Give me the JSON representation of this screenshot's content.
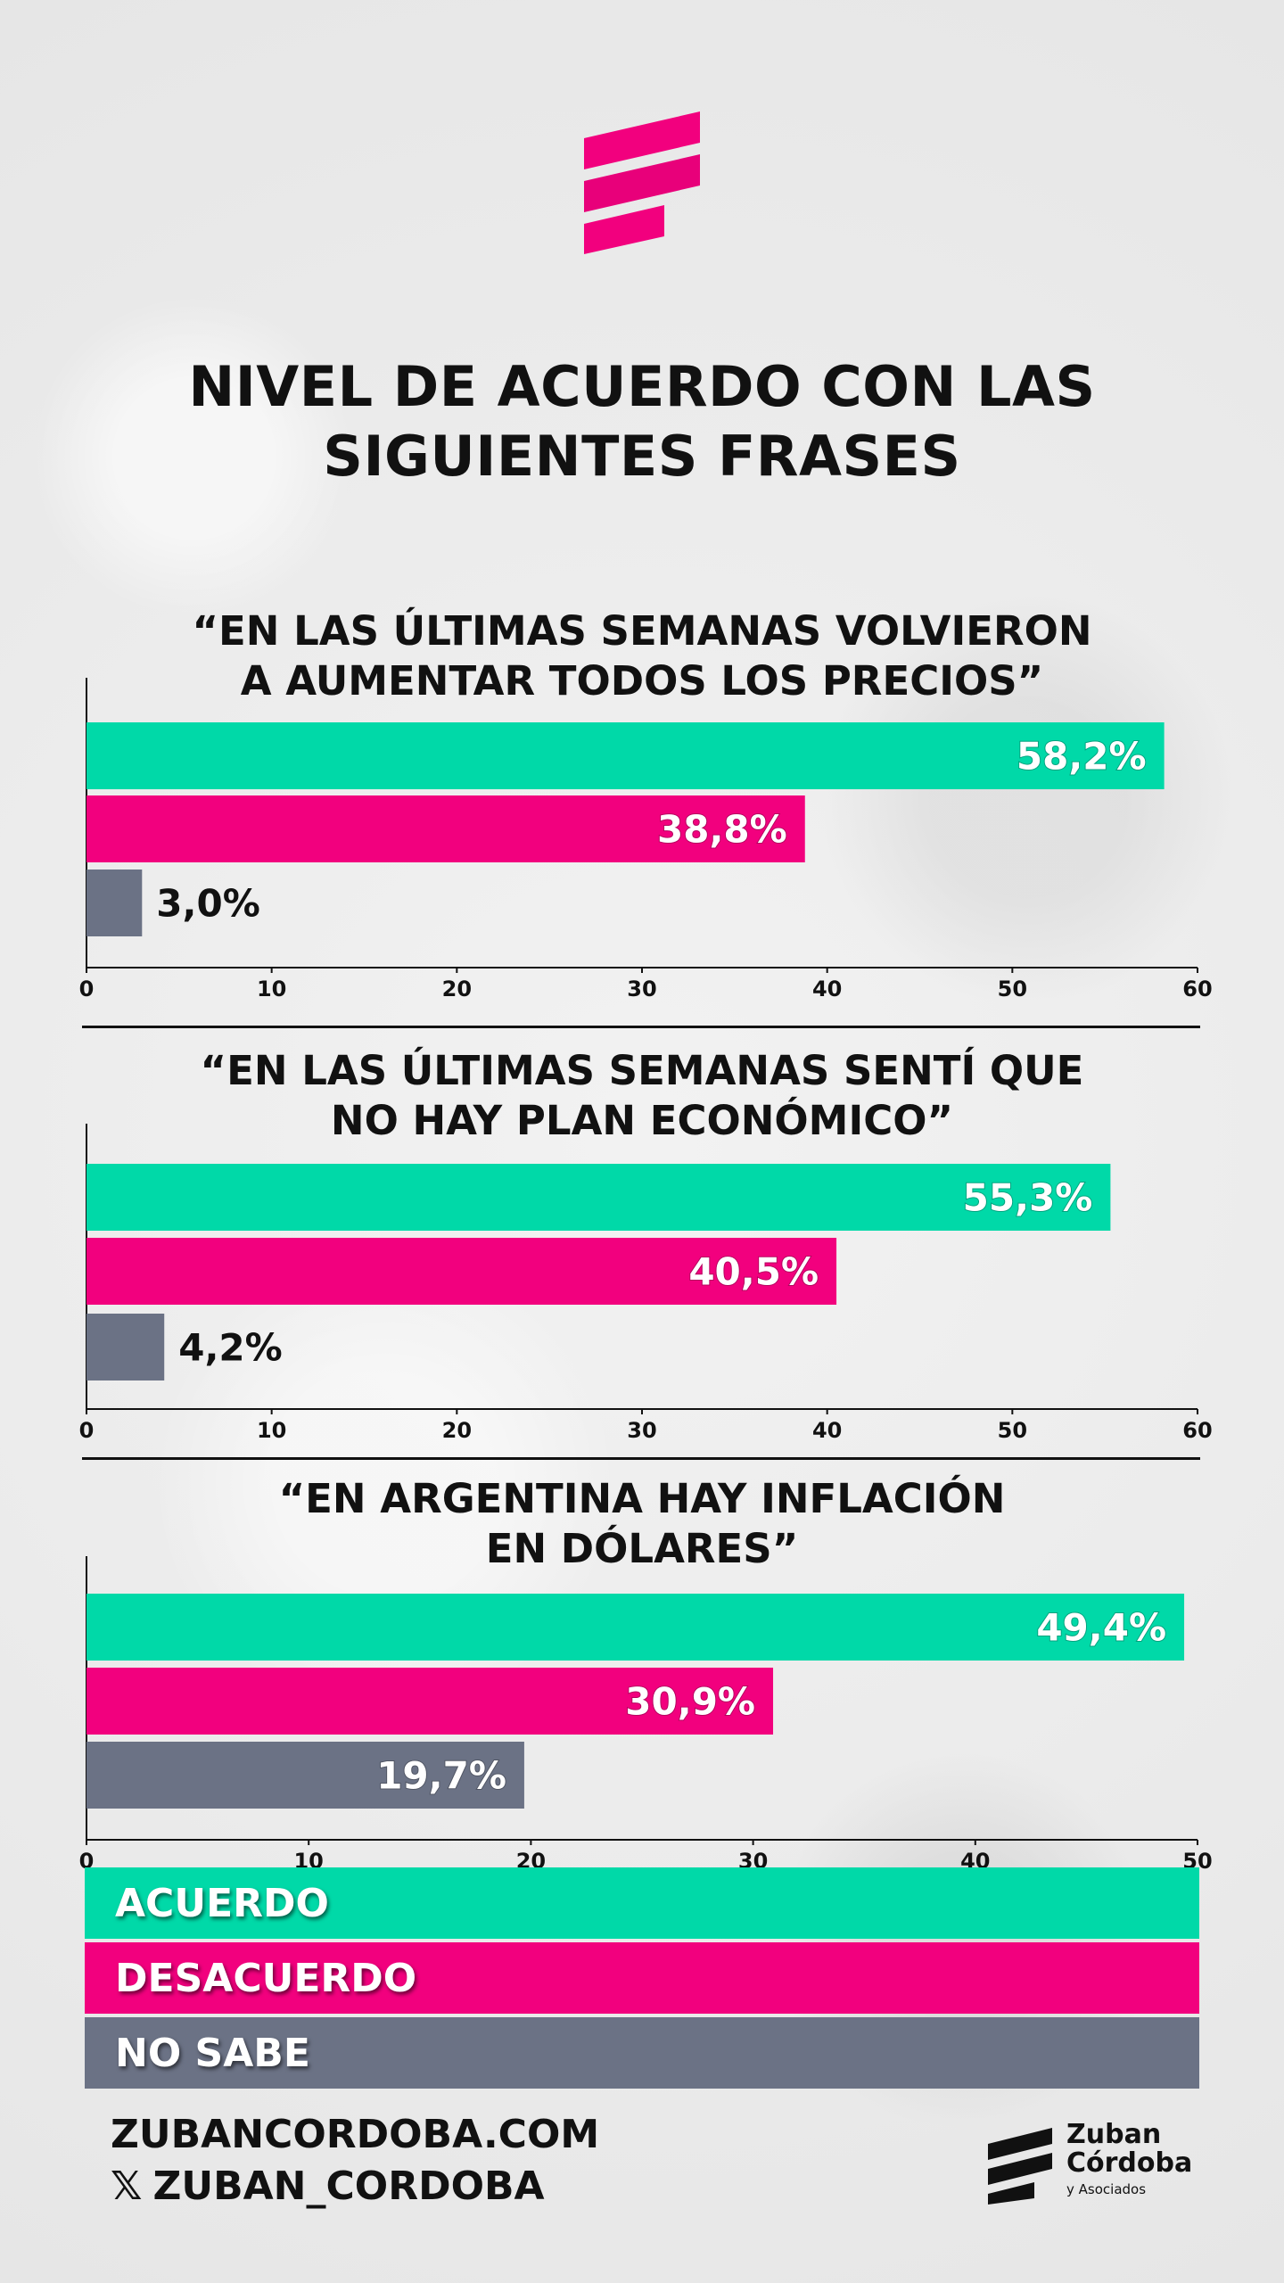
{
  "title": [
    "NIVEL DE ACUERDO CON LAS",
    "SIGUIENTES FRASES"
  ],
  "colors": {
    "acuerdo": "#00d9a8",
    "desacuerdo": "#f2007e",
    "no_sabe": "#6b7285",
    "text": "#111111"
  },
  "chart_data": [
    {
      "type": "bar",
      "orientation": "horizontal",
      "title": [
        "“EN LAS ÚLTIMAS SEMANAS VOLVIERON",
        "A AUMENTAR TODOS LOS PRECIOS”"
      ],
      "categories": [
        "ACUERDO",
        "DESACUERDO",
        "NO SABE"
      ],
      "values": [
        58.2,
        38.8,
        3.0
      ],
      "labels": [
        "58,2%",
        "38,8%",
        "3,0%"
      ],
      "xlim": [
        0,
        60
      ],
      "ticks": [
        "0",
        "10",
        "20",
        "30",
        "40",
        "50",
        "60"
      ]
    },
    {
      "type": "bar",
      "orientation": "horizontal",
      "title": [
        "“EN LAS ÚLTIMAS SEMANAS SENTÍ QUE",
        "NO HAY PLAN ECONÓMICO”"
      ],
      "categories": [
        "ACUERDO",
        "DESACUERDO",
        "NO SABE"
      ],
      "values": [
        55.3,
        40.5,
        4.2
      ],
      "labels": [
        "55,3%",
        "40,5%",
        "4,2%"
      ],
      "xlim": [
        0,
        60
      ],
      "ticks": [
        "0",
        "10",
        "20",
        "30",
        "40",
        "50",
        "60"
      ]
    },
    {
      "type": "bar",
      "orientation": "horizontal",
      "title": [
        "“EN ARGENTINA HAY INFLACIÓN",
        "EN DÓLARES”"
      ],
      "categories": [
        "ACUERDO",
        "DESACUERDO",
        "NO SABE"
      ],
      "values": [
        49.4,
        30.9,
        19.7
      ],
      "labels": [
        "49,4%",
        "30,9%",
        "19,7%"
      ],
      "xlim": [
        0,
        50
      ],
      "ticks": [
        "0",
        "10",
        "20",
        "30",
        "40",
        "50"
      ]
    }
  ],
  "legend": [
    {
      "label": "ACUERDO",
      "color": "#00d9a8"
    },
    {
      "label": "DESACUERDO",
      "color": "#f2007e"
    },
    {
      "label": "NO SABE",
      "color": "#6b7285"
    }
  ],
  "footer": {
    "website": "ZUBANCORDOBA.COM",
    "x_icon": "𝕏",
    "social": "ZUBAN_CORDOBA"
  },
  "brand": {
    "name_line1": "Zuban",
    "name_line2": "Córdoba",
    "sub": "y Asociados"
  }
}
